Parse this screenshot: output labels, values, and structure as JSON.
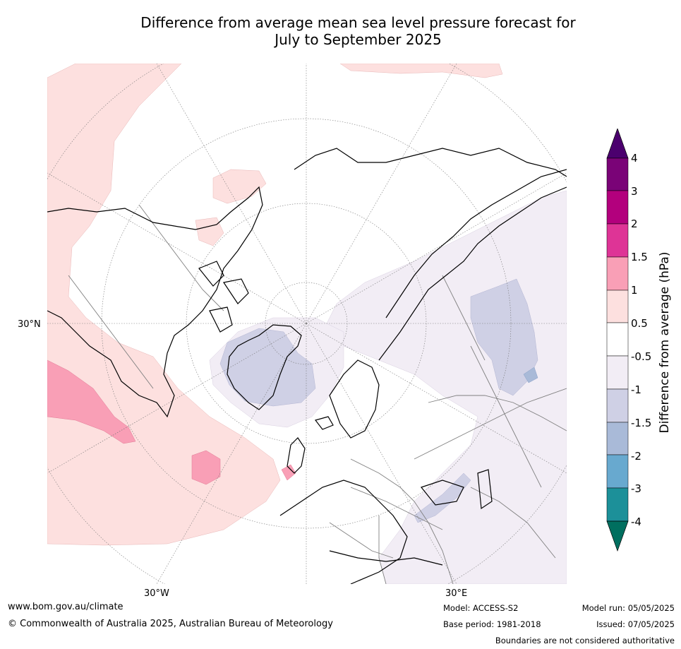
{
  "title_line1": "Difference from average mean sea level pressure forecast for",
  "title_line2": "July to September 2025",
  "map": {
    "labels": {
      "lat_30n": "30°N",
      "lon_30w": "30°W",
      "lon_30e": "30°E"
    },
    "colors": {
      "ocean_land_bg": "#ffffff",
      "coastline": "#000000",
      "borders": "#808080",
      "graticule": "#777777"
    }
  },
  "colorbar": {
    "title": "Difference from average (hPa)",
    "ticks": [
      "4",
      "3",
      "2",
      "1.5",
      "1",
      "0.5",
      "-0.5",
      "-1",
      "-1.5",
      "-2",
      "-3",
      "-4"
    ],
    "colors": [
      "#4b006e",
      "#7a0377",
      "#b3007d",
      "#de3496",
      "#f99fb6",
      "#fde0df",
      "#ffffff",
      "#f2edf5",
      "#cfd0e5",
      "#a9bad8",
      "#68a9cf",
      "#1c9099",
      "#006f5f"
    ]
  },
  "footer": {
    "website": "www.bom.gov.au/climate",
    "copyright": "© Commonwealth of Australia 2025, Australian Bureau of Meteorology",
    "model": "Model: ACCESS-S2",
    "base_period": "Base period: 1981-2018",
    "model_run": "Model run: 05/05/2025",
    "issued": "Issued: 07/05/2025",
    "disclaimer": "Boundaries are not considered authoritative"
  }
}
